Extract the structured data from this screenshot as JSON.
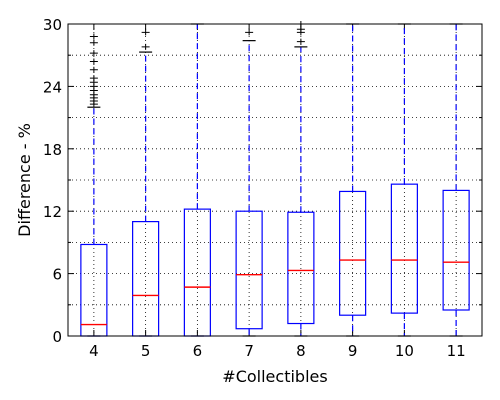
{
  "chart_data": {
    "type": "box",
    "xlabel": "#Collectibles",
    "ylabel": "Difference - %",
    "ylim": [
      0,
      30
    ],
    "yticks": [
      0,
      6,
      12,
      18,
      24,
      30
    ],
    "grid": true,
    "categories": [
      "4",
      "5",
      "6",
      "7",
      "8",
      "9",
      "10",
      "11"
    ],
    "boxes": [
      {
        "category": "4",
        "q1": 0,
        "median": 1.1,
        "q3": 8.8,
        "whisker_low": 0,
        "whisker_high": 22.0,
        "outliers": [
          22.3,
          22.6,
          22.9,
          23.2,
          23.6,
          24.0,
          24.4,
          24.8,
          25.6,
          26.4,
          27.2,
          28.2,
          28.8
        ]
      },
      {
        "category": "5",
        "q1": 0,
        "median": 3.9,
        "q3": 11.0,
        "whisker_low": 0,
        "whisker_high": 27.3,
        "outliers": [
          27.8,
          29.2
        ]
      },
      {
        "category": "6",
        "q1": 0,
        "median": 4.7,
        "q3": 12.2,
        "whisker_low": 0,
        "whisker_high": 30.0,
        "outliers": []
      },
      {
        "category": "7",
        "q1": 0.7,
        "median": 5.9,
        "q3": 12.0,
        "whisker_low": 0,
        "whisker_high": 28.4,
        "outliers": [
          29.2
        ]
      },
      {
        "category": "8",
        "q1": 1.2,
        "median": 6.3,
        "q3": 11.9,
        "whisker_low": 0,
        "whisker_high": 27.8,
        "outliers": [
          28.3,
          29.2,
          29.5,
          30.0
        ]
      },
      {
        "category": "9",
        "q1": 2.0,
        "median": 7.3,
        "q3": 13.9,
        "whisker_low": 0,
        "whisker_high": 30.0,
        "outliers": []
      },
      {
        "category": "10",
        "q1": 2.2,
        "median": 7.3,
        "q3": 14.6,
        "whisker_low": 0,
        "whisker_high": 30.0,
        "outliers": []
      },
      {
        "category": "11",
        "q1": 2.5,
        "median": 7.1,
        "q3": 14.0,
        "whisker_low": 0,
        "whisker_high": 30.0,
        "outliers": []
      }
    ],
    "colors": {
      "box": "#0000ff",
      "median": "#ff0000",
      "whisker": "#0000ff",
      "cap": "#000000",
      "outlier": "#000000",
      "grid": "#000000"
    }
  }
}
